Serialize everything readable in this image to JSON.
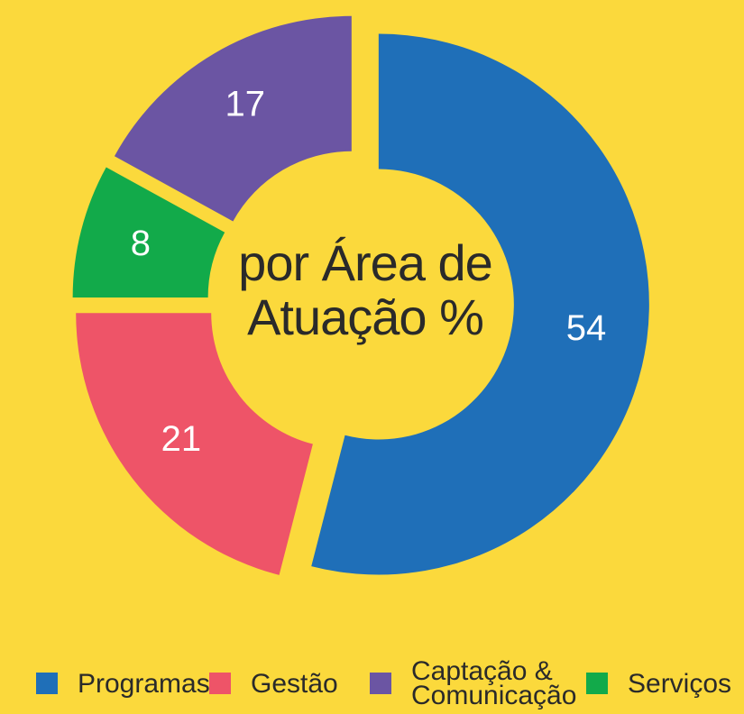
{
  "chart_data": {
    "type": "donut",
    "title": "por Área de Atuação %",
    "categories": [
      "Programas",
      "Gestão",
      "Serviços",
      "Captação & Comunicação"
    ],
    "values": [
      54,
      21,
      8,
      17
    ],
    "colors": [
      "#1f6fb8",
      "#ee5468",
      "#12aa4a",
      "#6b55a3"
    ],
    "background": "#fbd93c"
  }
}
